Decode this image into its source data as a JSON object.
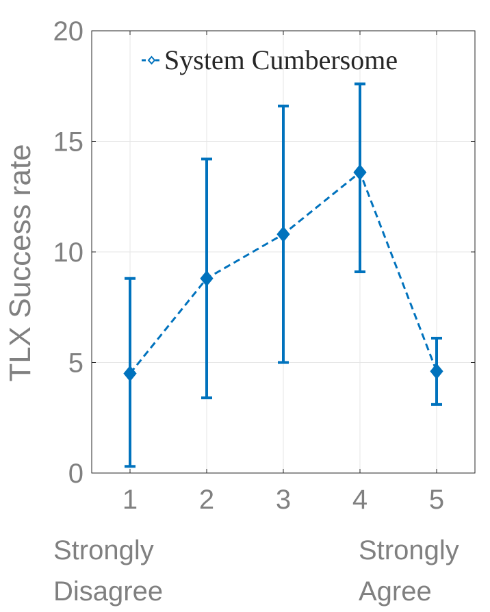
{
  "chart_data": {
    "type": "line",
    "ylabel": "TLX Success rate",
    "xlabel": "",
    "x": [
      1,
      2,
      3,
      4,
      5
    ],
    "xlim": [
      0.5,
      5.5
    ],
    "ylim": [
      0,
      20
    ],
    "xticks": [
      "1",
      "2",
      "3",
      "4",
      "5"
    ],
    "yticks": [
      "0",
      "5",
      "10",
      "15",
      "20"
    ],
    "grid": true,
    "legend_position": "top-right",
    "series": [
      {
        "name": "System Cumbersome",
        "color": "#0072BD",
        "line_style": "dashed",
        "marker": "diamond",
        "values": [
          4.5,
          8.8,
          10.8,
          13.6,
          4.6
        ],
        "error_low": [
          0.3,
          3.4,
          5.0,
          9.1,
          3.1
        ],
        "error_high": [
          8.8,
          14.2,
          16.6,
          17.6,
          6.1
        ]
      }
    ],
    "category_notes": {
      "left": [
        "Strongly",
        "Disagree"
      ],
      "right": [
        "Strongly",
        "Agree"
      ]
    }
  }
}
